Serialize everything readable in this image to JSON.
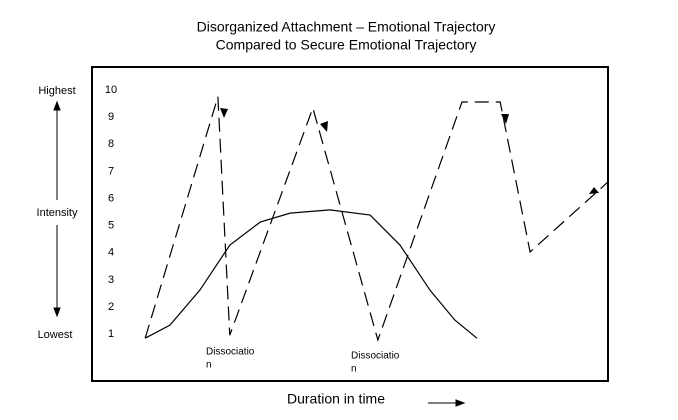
{
  "chart_data": {
    "type": "line",
    "title": [
      "Disorganized Attachment – Emotional Trajectory",
      "Compared to Secure Emotional Trajectory"
    ],
    "xlabel": "Duration in time",
    "ylabel": "Intensity",
    "y_top_label": "Highest",
    "y_bottom_label": "Lowest",
    "annotations": [
      [
        "Dissociatio",
        "n"
      ],
      [
        "Dissociatio",
        "n"
      ]
    ],
    "xlim": [
      0,
      100
    ],
    "ylim": [
      -0.73,
      10.85
    ],
    "yticks": [
      1,
      2,
      3,
      4,
      5,
      6,
      7,
      8,
      9,
      10
    ],
    "series": [
      {
        "color": "#000000",
        "dashed": true,
        "x": [
          10.3,
          24.4,
          26.7,
          42.8,
          55.4,
          71.7,
          79.1,
          84.9,
          100
        ],
        "values": [
          0.85,
          9.75,
          0.96,
          9.34,
          0.78,
          9.56,
          9.56,
          4.03,
          6.61
        ]
      },
      {
        "color": "#000000",
        "dashed": false,
        "x": [
          10.3,
          15.1,
          20.9,
          26.7,
          32.6,
          38.4,
          46.1,
          53.9,
          59.7,
          65.5,
          70.3,
          74.6
        ],
        "values": [
          0.85,
          1.33,
          2.62,
          4.28,
          5.13,
          5.46,
          5.58,
          5.39,
          4.28,
          2.62,
          1.52,
          0.85
        ]
      }
    ]
  }
}
